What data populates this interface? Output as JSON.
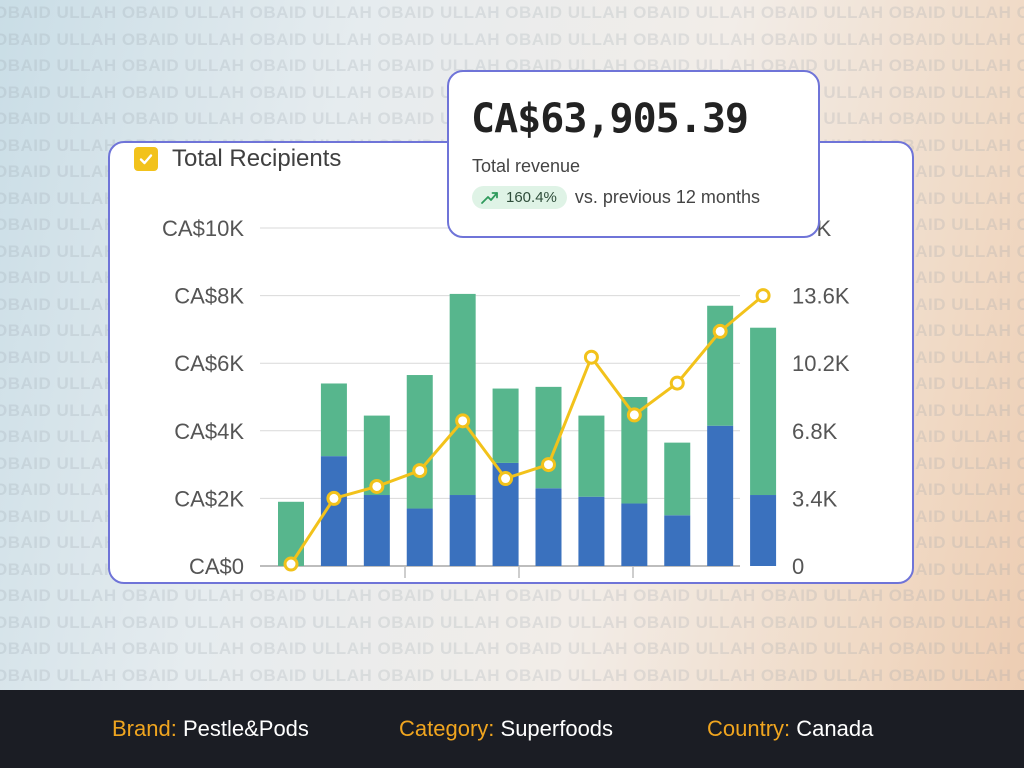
{
  "watermark_text": "OBAID ULLAH",
  "kpi": {
    "value": "CA$63,905.39",
    "label": "Total revenue",
    "trend_percent": "160.4%",
    "trend_text": "vs. previous 12 months"
  },
  "colors": {
    "bar_blue": "#3a71be",
    "bar_green": "#57b68d",
    "line_yellow": "#f2c21b",
    "card_border": "#6f74d8",
    "footer_bg": "#1b1d24",
    "footer_key": "#f0a51f"
  },
  "chart_data": {
    "type": "bar",
    "stacked": true,
    "legend": {
      "label": "Total Recipients",
      "checked": true,
      "position": "top-left"
    },
    "y_left": {
      "ticks": [
        "CA$0",
        "CA$2K",
        "CA$4K",
        "CA$6K",
        "CA$8K",
        "CA$10K"
      ],
      "range": [
        0,
        10000
      ]
    },
    "y_right": {
      "ticks": [
        "0",
        "3.4K",
        "6.8K",
        "10.2K",
        "13.6K",
        "17K"
      ],
      "range": [
        0,
        17000
      ]
    },
    "series": [
      {
        "values": [
          0,
          3250,
          2100,
          1700,
          2100,
          3050,
          2300,
          2050,
          1850,
          1500,
          4150,
          2100
        ]
      },
      {
        "values": [
          1900,
          2150,
          2350,
          3950,
          5950,
          2200,
          3000,
          2400,
          3150,
          2150,
          3550,
          4950
        ]
      }
    ],
    "line_series": {
      "axis": "right",
      "values": [
        100,
        3400,
        4000,
        4800,
        7300,
        4400,
        5100,
        10500,
        7600,
        9200,
        11800,
        13600
      ]
    },
    "grid": true
  },
  "footer": {
    "brand_key": "Brand:",
    "brand_value": "Pestle&Pods",
    "category_key": "Category:",
    "category_value": "Superfoods",
    "country_key": "Country:",
    "country_value": "Canada"
  }
}
